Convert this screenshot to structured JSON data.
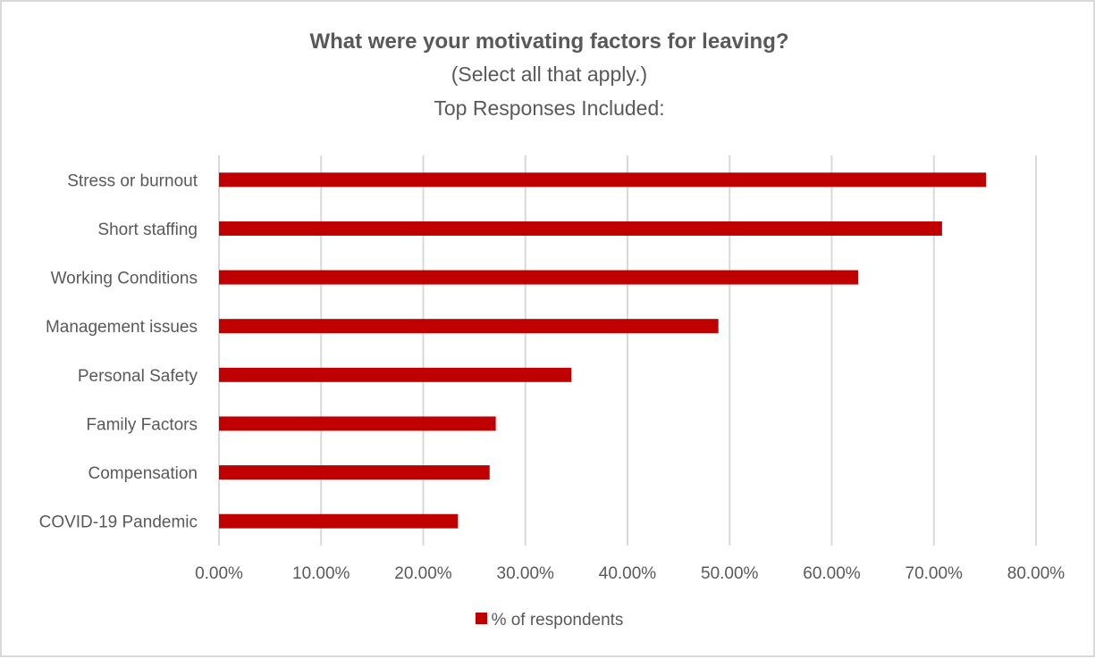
{
  "chart_data": {
    "type": "bar",
    "orientation": "horizontal",
    "title": "What were your motivating factors for leaving?",
    "subtitle_lines": [
      "(Select all that apply.)",
      "Top Responses Included:"
    ],
    "categories": [
      "Stress or burnout",
      "Short staffing",
      "Working Conditions",
      "Management issues",
      "Personal Safety",
      "Family Factors",
      "Compensation",
      "COVID-19 Pandemic"
    ],
    "series": [
      {
        "name": "% of respondents",
        "values": [
          75.1,
          70.8,
          62.6,
          48.9,
          34.5,
          27.1,
          26.5,
          23.4
        ]
      }
    ],
    "xlim": [
      0,
      80
    ],
    "xticks": [
      "0.00%",
      "10.00%",
      "20.00%",
      "30.00%",
      "40.00%",
      "50.00%",
      "60.00%",
      "70.00%",
      "80.00%"
    ],
    "grid": "vertical",
    "legend_position": "bottom",
    "bar_color": "#c00000",
    "grid_color": "#d9d9d9"
  }
}
